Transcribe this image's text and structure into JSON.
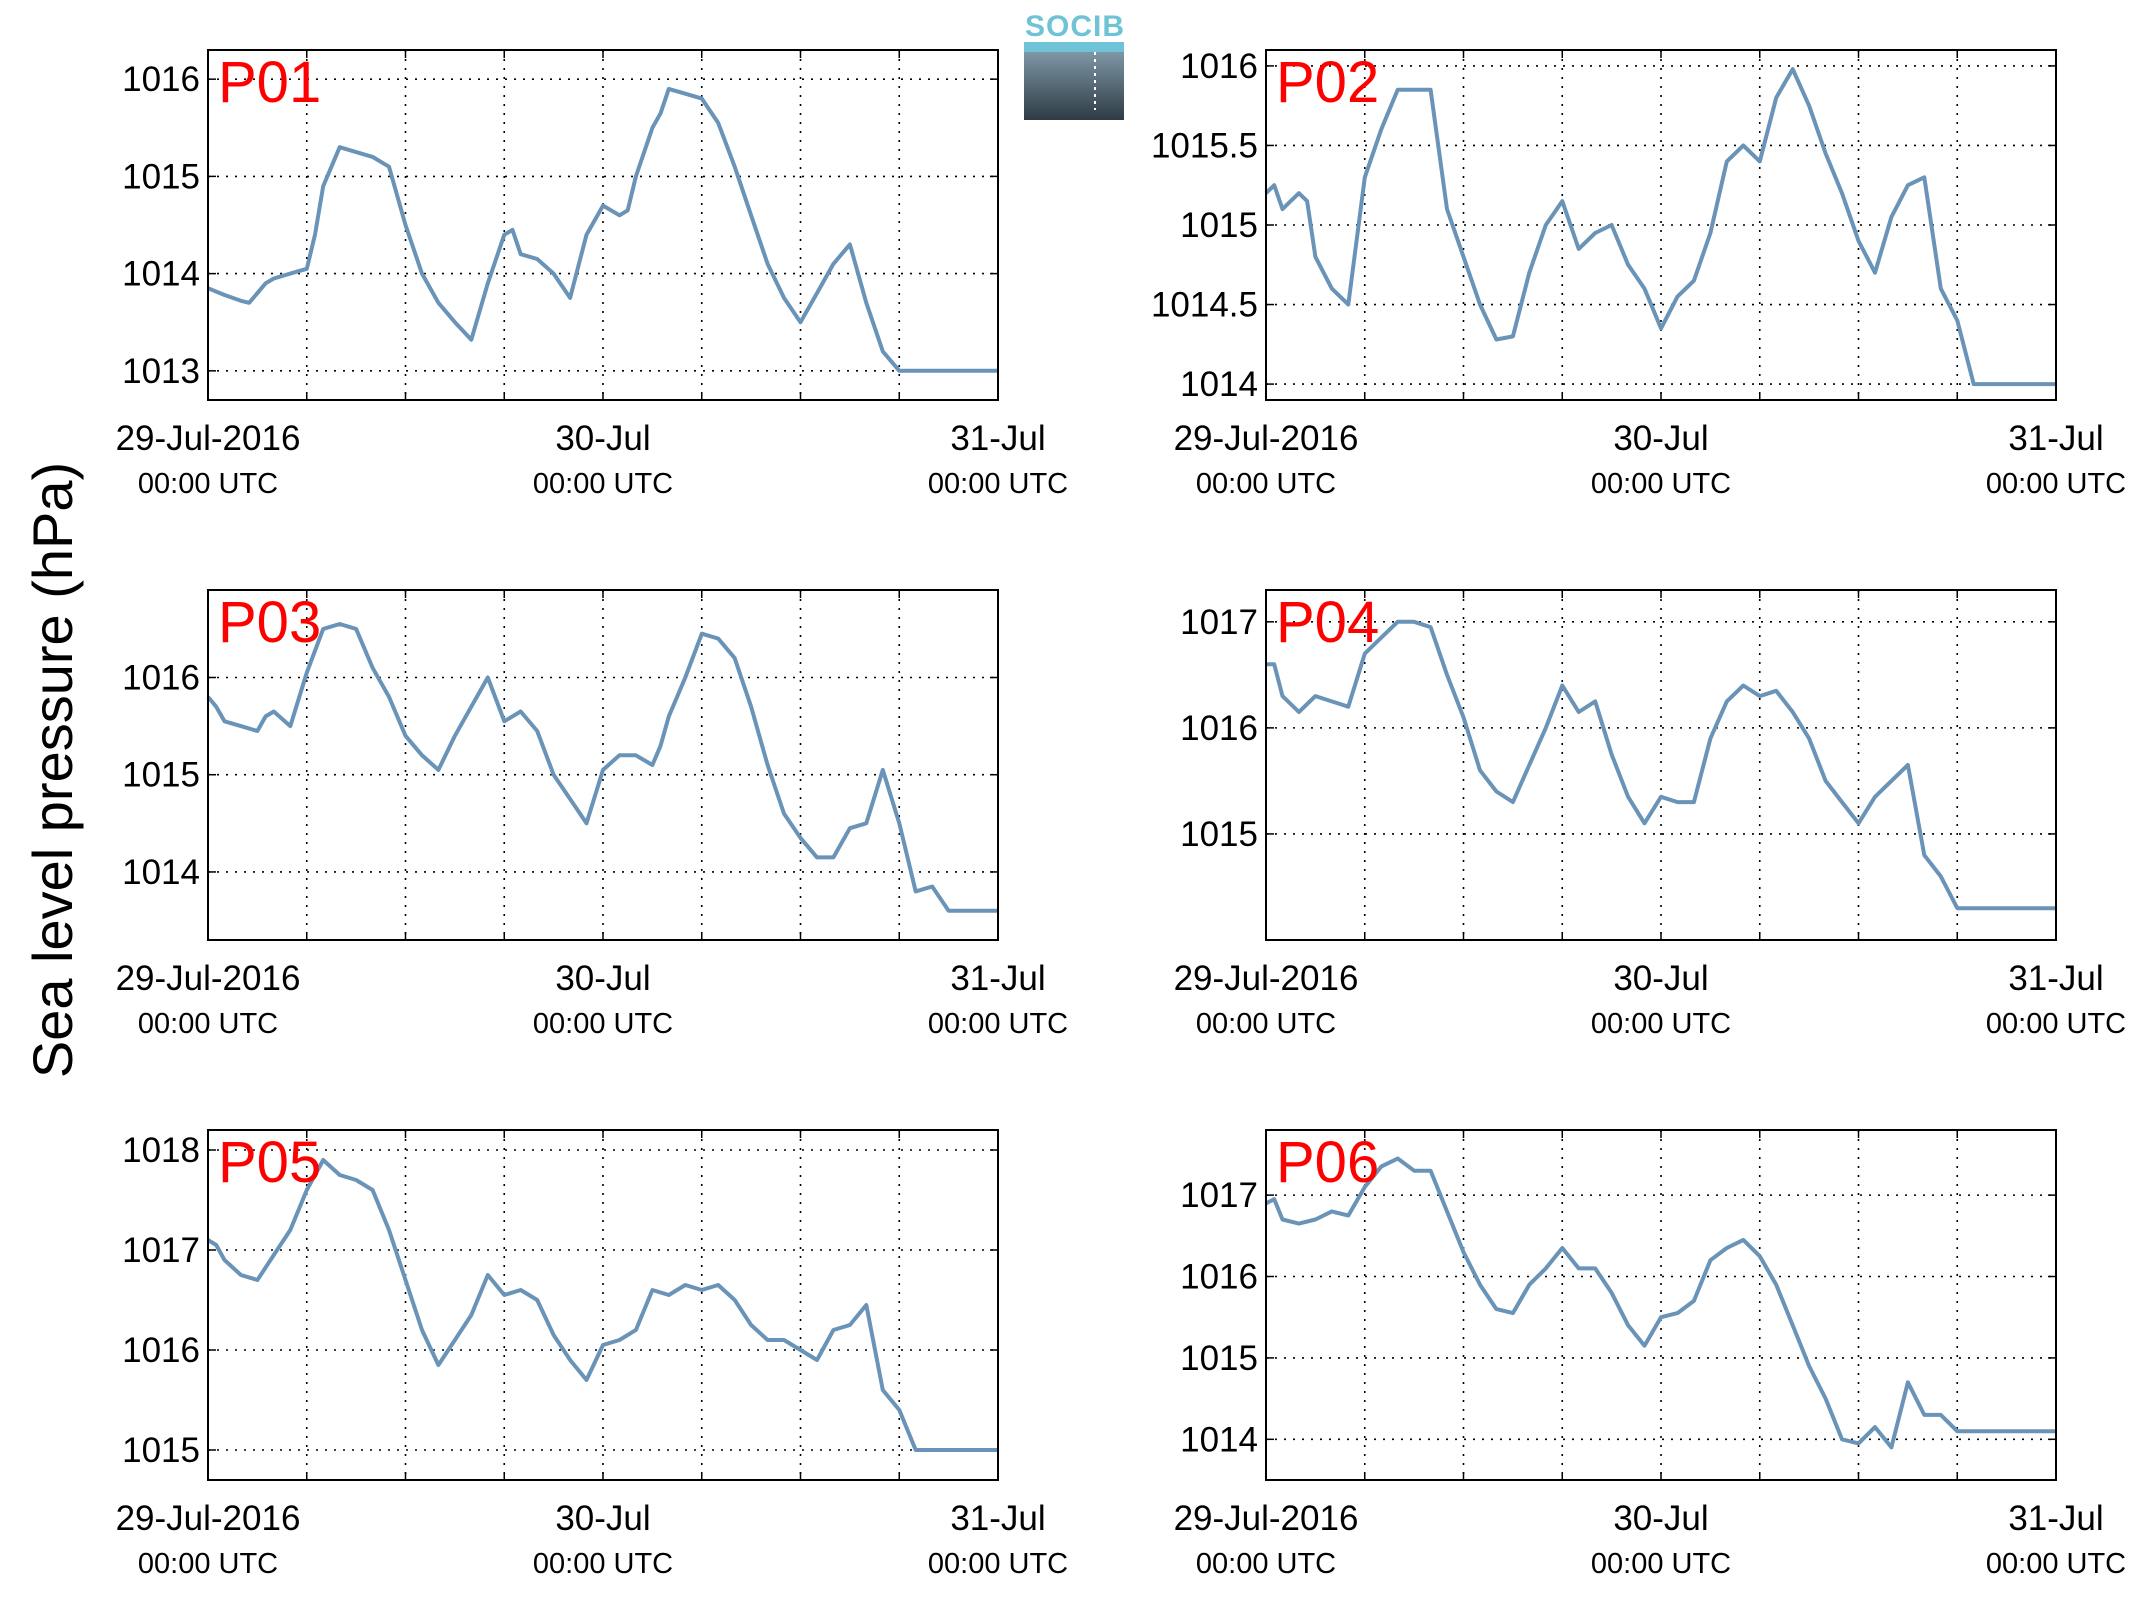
{
  "figure": {
    "ylabel": "Sea level pressure (hPa)",
    "logo_text": "SOCIB",
    "line_color": "#6a93b8",
    "label_color": "#ff0000"
  },
  "chart_data": [
    {
      "type": "line",
      "label": "P01",
      "xlabel": "",
      "x_unit": "hours since 29-Jul-2016 00:00 UTC",
      "xlim": [
        0,
        48
      ],
      "ylim": [
        1012.7,
        1016.3
      ],
      "yticks": [
        1013,
        1014,
        1015,
        1016
      ],
      "ytick_labels": [
        "1013",
        "1014",
        "1015",
        "1016"
      ],
      "xticks": [
        0,
        24,
        48
      ],
      "xtick_labels": [
        [
          "29-Jul-2016",
          "00:00 UTC"
        ],
        [
          "30-Jul",
          "00:00 UTC"
        ],
        [
          "31-Jul",
          "00:00 UTC"
        ]
      ],
      "grid": true,
      "x": [
        0,
        1,
        2,
        2.5,
        3,
        3.5,
        4,
        5,
        6,
        6.5,
        7,
        8,
        9,
        10,
        11,
        12,
        13,
        14,
        15,
        16,
        17,
        18,
        18.5,
        19,
        20,
        21,
        22,
        23,
        23.5,
        24,
        25,
        25.5,
        26,
        27,
        27.5,
        28,
        29,
        30,
        31,
        32,
        33,
        34,
        35,
        36,
        37,
        38,
        39,
        40,
        41,
        42,
        43,
        43.5,
        44,
        45,
        46,
        46.5,
        47,
        48
      ],
      "y": [
        1013.85,
        1013.78,
        1013.72,
        1013.7,
        1013.8,
        1013.9,
        1013.95,
        1014.0,
        1014.05,
        1014.4,
        1014.9,
        1015.3,
        1015.25,
        1015.2,
        1015.1,
        1014.5,
        1014.0,
        1013.7,
        1013.5,
        1013.32,
        1013.9,
        1014.4,
        1014.45,
        1014.2,
        1014.15,
        1014.0,
        1013.75,
        1014.4,
        1014.55,
        1014.7,
        1014.6,
        1014.65,
        1015.0,
        1015.5,
        1015.65,
        1015.9,
        1015.85,
        1015.8,
        1015.55,
        1015.1,
        1014.6,
        1014.1,
        1013.75,
        1013.5,
        1013.8,
        1014.1,
        1014.3,
        1013.7,
        1013.2,
        1013.0,
        1013.0,
        1013.0,
        1013.0,
        1013.0,
        1013.0,
        1013.0,
        1013.0,
        1013.0
      ]
    },
    {
      "type": "line",
      "label": "P02",
      "xlabel": "",
      "x_unit": "hours since 29-Jul-2016 00:00 UTC",
      "xlim": [
        0,
        48
      ],
      "ylim": [
        1013.9,
        1016.1
      ],
      "yticks": [
        1014,
        1014.5,
        1015,
        1015.5,
        1016
      ],
      "ytick_labels": [
        "1014",
        "1014.5",
        "1015",
        "1015.5",
        "1016"
      ],
      "xticks": [
        0,
        24,
        48
      ],
      "xtick_labels": [
        [
          "29-Jul-2016",
          "00:00 UTC"
        ],
        [
          "30-Jul",
          "00:00 UTC"
        ],
        [
          "31-Jul",
          "00:00 UTC"
        ]
      ],
      "grid": true,
      "x": [
        0,
        0.5,
        1,
        1.5,
        2,
        2.5,
        3,
        4,
        5,
        6,
        7,
        8,
        9,
        10,
        11,
        12,
        13,
        14,
        15,
        16,
        17,
        18,
        19,
        20,
        21,
        22,
        23,
        24,
        25,
        26,
        27,
        28,
        29,
        30,
        31,
        32,
        33,
        34,
        35,
        36,
        37,
        38,
        39,
        40,
        41,
        42,
        43,
        44,
        45,
        46,
        47,
        48
      ],
      "y": [
        1015.2,
        1015.25,
        1015.1,
        1015.15,
        1015.2,
        1015.15,
        1014.8,
        1014.6,
        1014.5,
        1015.3,
        1015.6,
        1015.85,
        1015.85,
        1015.85,
        1015.1,
        1014.8,
        1014.5,
        1014.28,
        1014.3,
        1014.7,
        1015.0,
        1015.15,
        1014.85,
        1014.95,
        1015.0,
        1014.75,
        1014.6,
        1014.35,
        1014.55,
        1014.65,
        1014.95,
        1015.4,
        1015.5,
        1015.4,
        1015.8,
        1015.98,
        1015.75,
        1015.45,
        1015.2,
        1014.9,
        1014.7,
        1015.05,
        1015.25,
        1015.3,
        1014.6,
        1014.4,
        1014.0,
        1014.0,
        1014.0,
        1014.0,
        1014.0,
        1014.0
      ]
    },
    {
      "type": "line",
      "label": "P03",
      "xlabel": "",
      "x_unit": "hours since 29-Jul-2016 00:00 UTC",
      "xlim": [
        0,
        48
      ],
      "ylim": [
        1013.3,
        1016.9
      ],
      "yticks": [
        1014,
        1015,
        1016
      ],
      "ytick_labels": [
        "1014",
        "1015",
        "1016"
      ],
      "xticks": [
        0,
        24,
        48
      ],
      "xtick_labels": [
        [
          "29-Jul-2016",
          "00:00 UTC"
        ],
        [
          "30-Jul",
          "00:00 UTC"
        ],
        [
          "31-Jul",
          "00:00 UTC"
        ]
      ],
      "grid": true,
      "x": [
        0,
        0.5,
        1,
        2,
        3,
        3.5,
        4,
        5,
        6,
        7,
        8,
        9,
        10,
        11,
        12,
        13,
        14,
        15,
        16,
        17,
        18,
        19,
        20,
        21,
        22,
        23,
        24,
        25,
        26,
        27,
        27.5,
        28,
        29,
        30,
        31,
        32,
        33,
        34,
        35,
        36,
        37,
        38,
        39,
        40,
        41,
        42,
        43,
        44,
        45,
        45.5,
        46,
        46.5,
        47,
        48
      ],
      "y": [
        1015.8,
        1015.7,
        1015.55,
        1015.5,
        1015.45,
        1015.6,
        1015.65,
        1015.5,
        1016.05,
        1016.5,
        1016.55,
        1016.5,
        1016.1,
        1015.8,
        1015.4,
        1015.2,
        1015.05,
        1015.4,
        1015.7,
        1016.0,
        1015.55,
        1015.65,
        1015.45,
        1015.0,
        1014.75,
        1014.5,
        1015.05,
        1015.2,
        1015.2,
        1015.1,
        1015.3,
        1015.6,
        1016.0,
        1016.45,
        1016.4,
        1016.2,
        1015.7,
        1015.1,
        1014.6,
        1014.35,
        1014.15,
        1014.15,
        1014.45,
        1014.5,
        1015.05,
        1014.5,
        1013.8,
        1013.85,
        1013.6,
        1013.6,
        1013.6,
        1013.6,
        1013.6,
        1013.6
      ]
    },
    {
      "type": "line",
      "label": "P04",
      "xlabel": "",
      "x_unit": "hours since 29-Jul-2016 00:00 UTC",
      "xlim": [
        0,
        48
      ],
      "ylim": [
        1014.0,
        1017.3
      ],
      "yticks": [
        1015,
        1016,
        1017
      ],
      "ytick_labels": [
        "1015",
        "1016",
        "1017"
      ],
      "xticks": [
        0,
        24,
        48
      ],
      "xtick_labels": [
        [
          "29-Jul-2016",
          "00:00 UTC"
        ],
        [
          "30-Jul",
          "00:00 UTC"
        ],
        [
          "31-Jul",
          "00:00 UTC"
        ]
      ],
      "grid": true,
      "x": [
        0,
        0.5,
        1,
        2,
        3,
        4,
        5,
        6,
        7,
        8,
        9,
        10,
        11,
        12,
        13,
        14,
        15,
        16,
        17,
        18,
        19,
        20,
        21,
        22,
        23,
        24,
        25,
        26,
        27,
        28,
        29,
        30,
        31,
        32,
        33,
        34,
        35,
        36,
        37,
        38,
        39,
        40,
        41,
        42,
        43,
        44,
        45,
        46,
        47,
        48
      ],
      "y": [
        1016.6,
        1016.6,
        1016.3,
        1016.15,
        1016.3,
        1016.25,
        1016.2,
        1016.7,
        1016.85,
        1017.0,
        1017.0,
        1016.95,
        1016.5,
        1016.1,
        1015.6,
        1015.4,
        1015.3,
        1015.65,
        1016.0,
        1016.4,
        1016.15,
        1016.25,
        1015.75,
        1015.35,
        1015.1,
        1015.35,
        1015.3,
        1015.3,
        1015.9,
        1016.25,
        1016.4,
        1016.3,
        1016.35,
        1016.15,
        1015.9,
        1015.5,
        1015.3,
        1015.1,
        1015.35,
        1015.5,
        1015.65,
        1014.8,
        1014.6,
        1014.3,
        1014.3,
        1014.3,
        1014.3,
        1014.3,
        1014.3,
        1014.3
      ]
    },
    {
      "type": "line",
      "label": "P05",
      "xlabel": "",
      "x_unit": "hours since 29-Jul-2016 00:00 UTC",
      "xlim": [
        0,
        48
      ],
      "ylim": [
        1014.7,
        1018.2
      ],
      "yticks": [
        1015,
        1016,
        1017,
        1018
      ],
      "ytick_labels": [
        "1015",
        "1016",
        "1017",
        "1018"
      ],
      "xticks": [
        0,
        24,
        48
      ],
      "xtick_labels": [
        [
          "29-Jul-2016",
          "00:00 UTC"
        ],
        [
          "30-Jul",
          "00:00 UTC"
        ],
        [
          "31-Jul",
          "00:00 UTC"
        ]
      ],
      "grid": true,
      "x": [
        0,
        0.5,
        1,
        2,
        3,
        4,
        5,
        6,
        7,
        8,
        9,
        10,
        11,
        12,
        13,
        14,
        15,
        16,
        17,
        18,
        19,
        20,
        21,
        22,
        23,
        24,
        25,
        26,
        27,
        28,
        29,
        30,
        31,
        32,
        33,
        34,
        35,
        36,
        37,
        38,
        39,
        40,
        41,
        42,
        43,
        44,
        45,
        46,
        47,
        48
      ],
      "y": [
        1017.1,
        1017.05,
        1016.9,
        1016.75,
        1016.7,
        1016.95,
        1017.2,
        1017.6,
        1017.9,
        1017.75,
        1017.7,
        1017.6,
        1017.2,
        1016.7,
        1016.2,
        1015.85,
        1016.1,
        1016.35,
        1016.75,
        1016.55,
        1016.6,
        1016.5,
        1016.15,
        1015.9,
        1015.7,
        1016.05,
        1016.1,
        1016.2,
        1016.6,
        1016.55,
        1016.65,
        1016.6,
        1016.65,
        1016.5,
        1016.25,
        1016.1,
        1016.1,
        1016.0,
        1015.9,
        1016.2,
        1016.25,
        1016.45,
        1015.6,
        1015.4,
        1015.0,
        1015.0,
        1015.0,
        1015.0,
        1015.0,
        1015.0
      ]
    },
    {
      "type": "line",
      "label": "P06",
      "xlabel": "",
      "x_unit": "hours since 29-Jul-2016 00:00 UTC",
      "xlim": [
        0,
        48
      ],
      "ylim": [
        1013.5,
        1017.8
      ],
      "yticks": [
        1014,
        1015,
        1016,
        1017
      ],
      "ytick_labels": [
        "1014",
        "1015",
        "1016",
        "1017"
      ],
      "xticks": [
        0,
        24,
        48
      ],
      "xtick_labels": [
        [
          "29-Jul-2016",
          "00:00 UTC"
        ],
        [
          "30-Jul",
          "00:00 UTC"
        ],
        [
          "31-Jul",
          "00:00 UTC"
        ]
      ],
      "grid": true,
      "x": [
        0,
        0.5,
        1,
        2,
        3,
        4,
        5,
        6,
        7,
        8,
        9,
        10,
        11,
        12,
        13,
        14,
        15,
        16,
        17,
        18,
        19,
        20,
        21,
        22,
        23,
        24,
        25,
        26,
        27,
        28,
        29,
        30,
        31,
        32,
        33,
        34,
        35,
        36,
        37,
        38,
        39,
        40,
        41,
        42,
        43,
        44,
        45,
        45.5,
        46,
        46.5,
        47,
        48
      ],
      "y": [
        1016.9,
        1016.95,
        1016.7,
        1016.65,
        1016.7,
        1016.8,
        1016.75,
        1017.1,
        1017.35,
        1017.45,
        1017.3,
        1017.3,
        1016.8,
        1016.3,
        1015.9,
        1015.6,
        1015.55,
        1015.9,
        1016.1,
        1016.35,
        1016.1,
        1016.1,
        1015.8,
        1015.4,
        1015.15,
        1015.5,
        1015.55,
        1015.7,
        1016.2,
        1016.35,
        1016.45,
        1016.25,
        1015.9,
        1015.4,
        1014.9,
        1014.5,
        1014.0,
        1013.95,
        1014.15,
        1013.9,
        1014.7,
        1014.3,
        1014.3,
        1014.1,
        1014.1,
        1014.1,
        1014.1,
        1014.1,
        1014.1,
        1014.1,
        1014.1,
        1014.1
      ]
    }
  ]
}
